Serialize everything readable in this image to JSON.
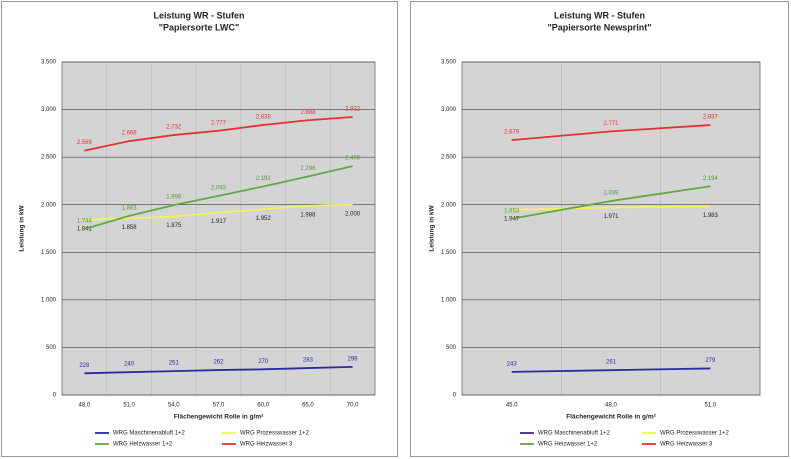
{
  "chart_data": [
    {
      "type": "line",
      "title": "Leistung WR - Stufen",
      "subtitle": "\"Papiersorte LWC\"",
      "x_label": "Flächengewicht Rolle in g/m²",
      "y_label": "Leistung in kW",
      "categories": [
        "48,0",
        "51,0",
        "54,0",
        "57,0",
        "60,0",
        "65,0",
        "70,0"
      ],
      "ylim": [
        0,
        3500
      ],
      "yticks": [
        0,
        500,
        {
          "value": 1000,
          "label": "1.000"
        },
        {
          "value": 1500,
          "label": "1.500"
        },
        {
          "value": 2000,
          "label": "2.000"
        },
        {
          "value": 2500,
          "label": "2.500"
        },
        {
          "value": 3000,
          "label": "3.000"
        },
        {
          "value": 3500,
          "label": "3.500"
        }
      ],
      "grid": true,
      "series": [
        {
          "name": "WRG Maschinenabluft 1+2",
          "color": "#2b2b9e",
          "label_color": "#2b2b9e",
          "label_position": "above",
          "values": [
            228,
            240,
            251,
            262,
            270,
            283,
            296
          ]
        },
        {
          "name": "WRG Prozesswasser 1+2",
          "color": "#f2f25a",
          "label_color": "#222222",
          "label_position": "below",
          "values": [
            1841,
            1858,
            1875,
            1917,
            1952,
            1988,
            2000
          ],
          "value_labels": [
            "1.841",
            "1.858",
            "1.875",
            "1.917",
            "1.952",
            "1.988",
            "2.000"
          ]
        },
        {
          "name": "WRG Heizwasser 1+2",
          "color": "#5fa843",
          "label_color": "#4e9a36",
          "label_position": "above",
          "values": [
            1744,
            1883,
            1996,
            2093,
            2192,
            2296,
            2406
          ],
          "value_labels": [
            "1.744",
            "1.883",
            "1.996",
            "2.093",
            "2.192",
            "2.296",
            "2.406"
          ]
        },
        {
          "name": "WRG Heizwasser 3",
          "color": "#e83030",
          "label_color": "#e83030",
          "label_position": "above",
          "values": [
            2569,
            2668,
            2732,
            2777,
            2838,
            2888,
            2922
          ],
          "value_labels": [
            "2.569",
            "2.668",
            "2.732",
            "2.777",
            "2.838",
            "2.888",
            "2.922"
          ]
        }
      ]
    },
    {
      "type": "line",
      "title": "Leistung WR - Stufen",
      "subtitle": "\"Papiersorte Newsprint\"",
      "x_label": "Flächengewicht Rolle in g/m²",
      "y_label": "Leistung in kW",
      "categories": [
        "45,0",
        "48,0",
        "51,0"
      ],
      "ylim": [
        0,
        3500
      ],
      "yticks": [
        0,
        500,
        {
          "value": 1000,
          "label": "1.000"
        },
        {
          "value": 1500,
          "label": "1.500"
        },
        {
          "value": 2000,
          "label": "2.000"
        },
        {
          "value": 2500,
          "label": "2.500"
        },
        {
          "value": 3000,
          "label": "3.000"
        },
        {
          "value": 3500,
          "label": "3.500"
        }
      ],
      "grid": true,
      "series": [
        {
          "name": "WRG Maschinenabluft 1+2",
          "color": "#2b2b9e",
          "label_color": "#2b2b9e",
          "label_position": "above",
          "values": [
            243,
            261,
            279
          ]
        },
        {
          "name": "WRG Prozesswasser 1+2",
          "color": "#f2f25a",
          "label_color": "#222222",
          "label_position": "below",
          "values": [
            1947,
            1971,
            1983
          ],
          "value_labels": [
            "1.947",
            "1.971",
            "1.983"
          ]
        },
        {
          "name": "WRG Heizwasser 1+2",
          "color": "#5fa843",
          "label_color": "#4e9a36",
          "label_position": "above",
          "values": [
            1853,
            2039,
            2194
          ],
          "value_labels": [
            "1.853",
            "2.039",
            "2.194"
          ]
        },
        {
          "name": "WRG Heizwasser 3",
          "color": "#e83030",
          "label_color": "#e83030",
          "label_position": "above",
          "values": [
            2679,
            2771,
            2837
          ],
          "value_labels": [
            "2.679",
            "2.771",
            "2.837"
          ]
        }
      ]
    }
  ]
}
